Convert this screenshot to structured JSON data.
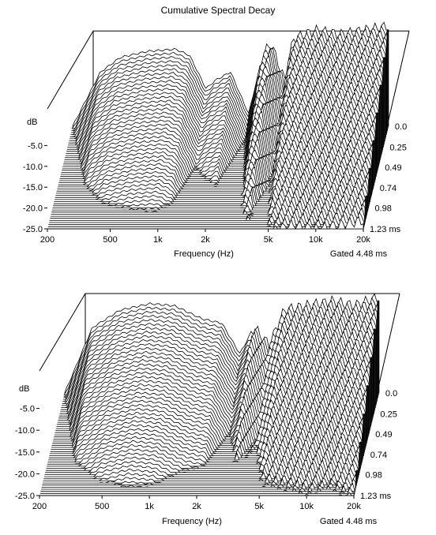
{
  "page": {
    "title": "Cumulative Spectral Decay"
  },
  "chart_data": [
    {
      "type": "waterfall",
      "title": "Cumulative Spectral Decay",
      "xlabel": "Frequency (Hz)",
      "x_scale": "log",
      "xlim": [
        200,
        20000
      ],
      "x_ticks": [
        200,
        500,
        1000,
        2000,
        5000,
        10000,
        20000
      ],
      "x_tick_labels": [
        "200",
        "500",
        "1k",
        "2k",
        "5k",
        "10k",
        "20k"
      ],
      "ylabel": "dB",
      "ylim": [
        -25.0,
        0.0
      ],
      "y_ticks": [
        -25.0,
        -20.0,
        -15.0,
        -10.0,
        -5.0
      ],
      "y_tick_labels": [
        "-25.0",
        "-20.0",
        "-15.0",
        "-10.0",
        "-5.0"
      ],
      "time_ticks": [
        0.0,
        0.25,
        0.49,
        0.74,
        0.98,
        1.23
      ],
      "time_tick_labels": [
        "0.0",
        "0.25",
        "0.49",
        "0.74",
        "0.98",
        "1.23 ms"
      ],
      "annotation": "Gated 4.48 ms",
      "slice_count": 50,
      "profile_db": [
        {
          "f": 200,
          "db": -25.0
        },
        {
          "f": 300,
          "db": -12.0
        },
        {
          "f": 400,
          "db": -8.5
        },
        {
          "f": 600,
          "db": -7.0
        },
        {
          "f": 900,
          "db": -6.5
        },
        {
          "f": 1100,
          "db": -8.0
        },
        {
          "f": 1400,
          "db": -16.0
        },
        {
          "f": 1600,
          "db": -14.0
        },
        {
          "f": 2000,
          "db": -12.0
        },
        {
          "f": 2600,
          "db": -22.0
        },
        {
          "f": 3200,
          "db": -8.0
        },
        {
          "f": 3600,
          "db": -5.0
        },
        {
          "f": 4400,
          "db": -14.0
        },
        {
          "f": 5000,
          "db": -4.0
        },
        {
          "f": 7000,
          "db": -2.0
        },
        {
          "f": 10000,
          "db": -3.0
        },
        {
          "f": 14000,
          "db": -2.0
        },
        {
          "f": 20000,
          "db": -1.0
        }
      ]
    },
    {
      "type": "waterfall",
      "title": "",
      "xlabel": "Frequency (Hz)",
      "x_scale": "log",
      "xlim": [
        200,
        20000
      ],
      "x_ticks": [
        200,
        500,
        1000,
        2000,
        5000,
        10000,
        20000
      ],
      "x_tick_labels": [
        "200",
        "500",
        "1k",
        "2k",
        "5k",
        "10k",
        "20k"
      ],
      "ylabel": "dB",
      "ylim": [
        -25.0,
        0.0
      ],
      "y_ticks": [
        -25.0,
        -20.0,
        -15.0,
        -10.0,
        -5.0
      ],
      "y_tick_labels": [
        "-25.0",
        "-20.0",
        "-15.0",
        "-10.0",
        "-5.0"
      ],
      "time_ticks": [
        0.0,
        0.25,
        0.49,
        0.74,
        0.98,
        1.23
      ],
      "time_tick_labels": [
        "0.0",
        "0.25",
        "0.49",
        "0.74",
        "0.98",
        "1.23 ms"
      ],
      "annotation": "Gated 4.48 ms",
      "slice_count": 50,
      "profile_db": [
        {
          "f": 200,
          "db": -25.0
        },
        {
          "f": 300,
          "db": -10.0
        },
        {
          "f": 450,
          "db": -6.0
        },
        {
          "f": 700,
          "db": -4.5
        },
        {
          "f": 1000,
          "db": -5.0
        },
        {
          "f": 1500,
          "db": -8.0
        },
        {
          "f": 2000,
          "db": -9.0
        },
        {
          "f": 2600,
          "db": -16.0
        },
        {
          "f": 3200,
          "db": -10.0
        },
        {
          "f": 4000,
          "db": -14.0
        },
        {
          "f": 5000,
          "db": -6.0
        },
        {
          "f": 7000,
          "db": -5.0
        },
        {
          "f": 10000,
          "db": -4.0
        },
        {
          "f": 14000,
          "db": -5.0
        },
        {
          "f": 20000,
          "db": -3.0
        }
      ]
    }
  ]
}
